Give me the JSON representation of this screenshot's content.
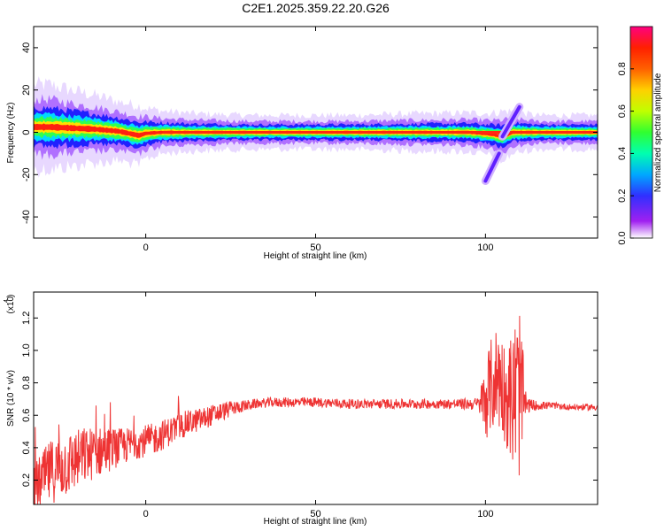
{
  "title": "C2E1.2025.359.22.20.G26",
  "chart_data": [
    {
      "type": "heatmap",
      "name": "spectrogram",
      "xlabel": "Height of straight line (km)",
      "ylabel": "Frequency (Hz)",
      "xlim": [
        -33,
        133
      ],
      "ylim": [
        -50,
        50
      ],
      "xticks": [
        0,
        50,
        100
      ],
      "yticks": [
        -40,
        -20,
        0,
        20,
        40
      ],
      "ridge": [
        {
          "x": -33,
          "y": 2.5,
          "w": 5
        },
        {
          "x": -28,
          "y": 2.5,
          "w": 5
        },
        {
          "x": -22,
          "y": 2,
          "w": 4.5
        },
        {
          "x": -15,
          "y": 1.5,
          "w": 4
        },
        {
          "x": -8,
          "y": 0.5,
          "w": 3.5
        },
        {
          "x": -2,
          "y": -1.5,
          "w": 3.5
        },
        {
          "x": 0,
          "y": -0.5,
          "w": 3
        },
        {
          "x": 5,
          "y": 0,
          "w": 2.5
        },
        {
          "x": 15,
          "y": 0,
          "w": 2.2
        },
        {
          "x": 30,
          "y": 0,
          "w": 2
        },
        {
          "x": 60,
          "y": 0,
          "w": 2
        },
        {
          "x": 80,
          "y": 0,
          "w": 2.2
        },
        {
          "x": 95,
          "y": 0,
          "w": 2.3
        },
        {
          "x": 102,
          "y": -1,
          "w": 2.5
        },
        {
          "x": 105,
          "y": -2,
          "w": 3
        },
        {
          "x": 108,
          "y": 0,
          "w": 2.5
        },
        {
          "x": 115,
          "y": 0,
          "w": 2
        },
        {
          "x": 133,
          "y": 0,
          "w": 2
        }
      ],
      "streaks": [
        {
          "x": [
            100,
            104
          ],
          "y": [
            -23,
            -10
          ]
        },
        {
          "x": [
            105,
            110
          ],
          "y": [
            -2,
            12
          ]
        }
      ],
      "colorbar": {
        "label": "Normalized spectral amplitude",
        "ticks": [
          0.0,
          0.2,
          0.4,
          0.6,
          0.8
        ],
        "range": [
          0,
          1
        ]
      }
    },
    {
      "type": "line",
      "name": "snr",
      "xlabel": "Height of straight line (km)",
      "ylabel": "SNR (10 * v/v)",
      "yscale_label": "(x10",
      "yscale_exp": "4",
      "xlim": [
        -33,
        133
      ],
      "ylim": [
        0.05,
        1.36
      ],
      "xticks": [
        0,
        50,
        100
      ],
      "yticks": [
        0.2,
        0.4,
        0.6,
        0.8,
        1.0,
        1.2
      ],
      "color": "#ee3333",
      "series": [
        {
          "x": [
            -33,
            -28,
            -23,
            -18,
            -13,
            -8,
            -3,
            2,
            7,
            12,
            17,
            22,
            27,
            32,
            37,
            50,
            60,
            70,
            80,
            90,
            98,
            100,
            102,
            104,
            106,
            108,
            110,
            112,
            115,
            120,
            125,
            133
          ],
          "y": [
            0.15,
            0.25,
            0.3,
            0.35,
            0.38,
            0.4,
            0.43,
            0.45,
            0.5,
            0.55,
            0.58,
            0.62,
            0.65,
            0.67,
            0.68,
            0.68,
            0.67,
            0.67,
            0.67,
            0.67,
            0.67,
            0.7,
            0.8,
            0.85,
            0.72,
            0.7,
            0.75,
            0.66,
            0.66,
            0.66,
            0.65,
            0.65
          ],
          "spread": [
            0.15,
            0.2,
            0.2,
            0.18,
            0.15,
            0.12,
            0.1,
            0.1,
            0.09,
            0.08,
            0.07,
            0.06,
            0.04,
            0.03,
            0.03,
            0.03,
            0.03,
            0.03,
            0.03,
            0.03,
            0.04,
            0.25,
            0.3,
            0.35,
            0.3,
            0.45,
            0.55,
            0.05,
            0.03,
            0.02,
            0.02,
            0.02
          ]
        }
      ]
    }
  ]
}
